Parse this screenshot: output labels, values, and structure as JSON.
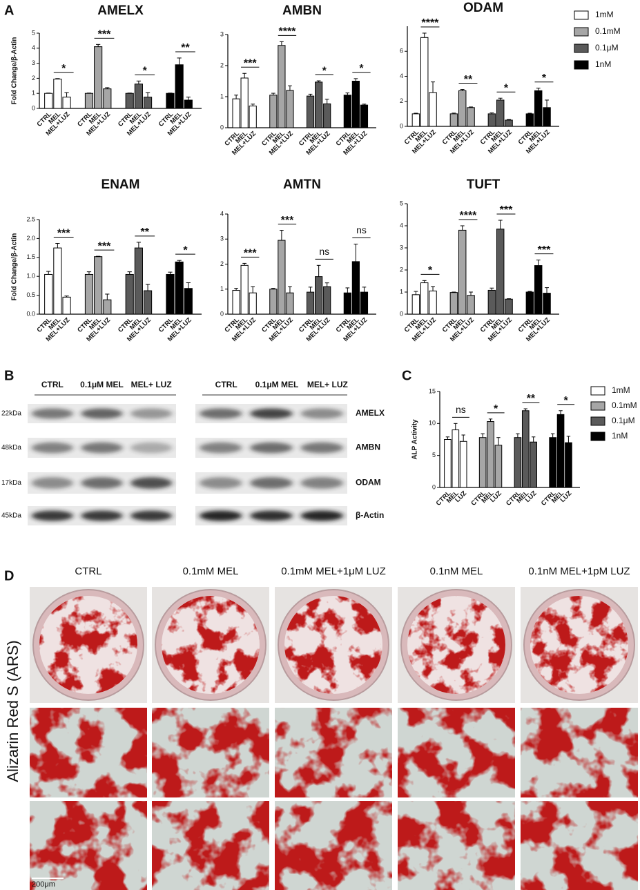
{
  "panel_labels": [
    "A",
    "B",
    "C",
    "D"
  ],
  "chart_data": [
    {
      "type": "bar",
      "title": "AMELX",
      "ylabel": "Fold Change/β-Actin",
      "categories": [
        "CTRL",
        "MEL",
        "MEL+LUZ"
      ],
      "ylim": [
        0,
        5
      ],
      "yticks": [
        0,
        1,
        2,
        3,
        4,
        5
      ],
      "series": [
        {
          "color": "#ffffff",
          "values": [
            1.0,
            1.95,
            0.75
          ],
          "errors": [
            0.02,
            0.03,
            0.3
          ],
          "significance": "*"
        },
        {
          "color": "#a6a6a6",
          "values": [
            1.0,
            4.1,
            1.3
          ],
          "errors": [
            0.02,
            0.15,
            0.08
          ],
          "significance": "***"
        },
        {
          "color": "#5a5a5a",
          "values": [
            1.0,
            1.62,
            0.75
          ],
          "errors": [
            0.02,
            0.2,
            0.3
          ],
          "significance": "*"
        },
        {
          "color": "#000000",
          "values": [
            1.0,
            2.9,
            0.55
          ],
          "errors": [
            0.02,
            0.45,
            0.2
          ],
          "significance": "**"
        }
      ]
    },
    {
      "type": "bar",
      "title": "AMBN",
      "categories": [
        "CTRL",
        "MEL",
        "MEL+LUZ"
      ],
      "ylim": [
        0,
        3
      ],
      "yticks": [
        0,
        1,
        2,
        3
      ],
      "series": [
        {
          "color": "#ffffff",
          "values": [
            0.93,
            1.6,
            0.7
          ],
          "errors": [
            0.12,
            0.15,
            0.06
          ],
          "significance": "***"
        },
        {
          "color": "#a6a6a6",
          "values": [
            1.05,
            2.65,
            1.2
          ],
          "errors": [
            0.06,
            0.12,
            0.15
          ],
          "significance": "****"
        },
        {
          "color": "#5a5a5a",
          "values": [
            1.02,
            1.47,
            0.77
          ],
          "errors": [
            0.06,
            0.04,
            0.15
          ],
          "significance": "*"
        },
        {
          "color": "#000000",
          "values": [
            1.05,
            1.5,
            0.73
          ],
          "errors": [
            0.07,
            0.08,
            0.03
          ],
          "significance": "*"
        }
      ]
    },
    {
      "type": "bar",
      "title": "ODAM",
      "categories": [
        "CTRL",
        "MEL",
        "MEL+LUZ"
      ],
      "legend": "right",
      "ylim": [
        0,
        8
      ],
      "yticks": [
        0,
        2,
        4,
        6
      ],
      "series": [
        {
          "name": "1mM",
          "color": "#ffffff",
          "values": [
            1.0,
            7.1,
            2.7
          ],
          "errors": [
            0.05,
            0.35,
            0.85
          ],
          "significance": "****"
        },
        {
          "name": "0.1mM",
          "color": "#a6a6a6",
          "values": [
            1.0,
            2.85,
            1.5
          ],
          "errors": [
            0.06,
            0.1,
            0.05
          ],
          "significance": "**"
        },
        {
          "name": "0.1μM",
          "color": "#5a5a5a",
          "values": [
            1.0,
            2.1,
            0.5
          ],
          "errors": [
            0.08,
            0.15,
            0.05
          ],
          "significance": "*"
        },
        {
          "name": "1nM",
          "color": "#000000",
          "values": [
            1.0,
            2.85,
            1.5
          ],
          "errors": [
            0.05,
            0.2,
            0.6
          ],
          "significance": "*"
        }
      ]
    },
    {
      "type": "bar",
      "title": "ENAM",
      "ylabel": "Fold Change/β-Actin",
      "categories": [
        "CTRL",
        "MEL",
        "MEL+LUZ"
      ],
      "ylim": [
        0,
        2.5
      ],
      "yticks": [
        {
          "value": 0,
          "label": "0.0"
        },
        0.5,
        {
          "value": 1,
          "label": "1.0"
        },
        1.5,
        {
          "value": 2,
          "label": "2.0"
        },
        2.5
      ],
      "series": [
        {
          "color": "#ffffff",
          "values": [
            1.05,
            1.75,
            0.45
          ],
          "errors": [
            0.08,
            0.12,
            0.03
          ],
          "significance": "***"
        },
        {
          "color": "#a6a6a6",
          "values": [
            1.05,
            1.52,
            0.38
          ],
          "errors": [
            0.07,
            0.01,
            0.15
          ],
          "significance": "***"
        },
        {
          "color": "#5a5a5a",
          "values": [
            1.05,
            1.75,
            0.62
          ],
          "errors": [
            0.07,
            0.15,
            0.17
          ],
          "significance": "**"
        },
        {
          "color": "#000000",
          "values": [
            1.05,
            1.38,
            0.68
          ],
          "errors": [
            0.06,
            0.04,
            0.15
          ],
          "significance": "*"
        }
      ]
    },
    {
      "type": "bar",
      "title": "AMTN",
      "categories": [
        "CTRL",
        "MEL",
        "MEL+LUZ"
      ],
      "ylim": [
        0,
        4
      ],
      "yticks": [
        0,
        1,
        2,
        3,
        4
      ],
      "series": [
        {
          "color": "#ffffff",
          "values": [
            0.95,
            1.95,
            0.85
          ],
          "errors": [
            0.08,
            0.08,
            0.25
          ],
          "significance": "***"
        },
        {
          "color": "#a6a6a6",
          "values": [
            1.0,
            2.95,
            0.85
          ],
          "errors": [
            0.03,
            0.4,
            0.25
          ],
          "significance": "***"
        },
        {
          "color": "#5a5a5a",
          "values": [
            0.88,
            1.5,
            1.1
          ],
          "errors": [
            0.2,
            0.45,
            0.15
          ],
          "significance": "ns"
        },
        {
          "color": "#000000",
          "values": [
            0.85,
            2.1,
            0.88
          ],
          "errors": [
            0.2,
            0.7,
            0.2
          ],
          "significance": "ns"
        }
      ]
    },
    {
      "type": "bar",
      "title": "TUFT",
      "categories": [
        "CTRL",
        "MEL",
        "MEL+LUZ"
      ],
      "ylim": [
        0,
        5
      ],
      "yticks": [
        0,
        1,
        2,
        3,
        4,
        5
      ],
      "series": [
        {
          "color": "#ffffff",
          "values": [
            0.88,
            1.42,
            1.05
          ],
          "errors": [
            0.15,
            0.1,
            0.2
          ],
          "significance": "*"
        },
        {
          "color": "#a6a6a6",
          "values": [
            0.98,
            3.8,
            0.85
          ],
          "errors": [
            0.02,
            0.2,
            0.15
          ],
          "significance": "****"
        },
        {
          "color": "#5a5a5a",
          "values": [
            1.08,
            3.85,
            0.68
          ],
          "errors": [
            0.1,
            0.4,
            0.02
          ],
          "significance": "***"
        },
        {
          "color": "#000000",
          "values": [
            1.0,
            2.2,
            0.95
          ],
          "errors": [
            0.03,
            0.25,
            0.25
          ],
          "significance": "***"
        }
      ]
    },
    {
      "type": "bar",
      "ylabel": "ALP Activity",
      "categories": [
        "CTRL",
        "MEL",
        "LUZ"
      ],
      "legend": "right",
      "ylim": [
        0,
        15
      ],
      "yticks": [
        0,
        5,
        10,
        15
      ],
      "series": [
        {
          "name": "1mM",
          "color": "#ffffff",
          "values": [
            7.5,
            9.0,
            7.2
          ],
          "errors": [
            0.4,
            1.0,
            1.0
          ],
          "significance": "ns"
        },
        {
          "name": "0.1mM",
          "color": "#a6a6a6",
          "values": [
            7.8,
            10.3,
            6.6
          ],
          "errors": [
            0.6,
            0.4,
            1.2
          ],
          "significance": "*"
        },
        {
          "name": "0.1μM",
          "color": "#5a5a5a",
          "values": [
            7.8,
            12.0,
            7.1
          ],
          "errors": [
            0.6,
            0.3,
            0.8
          ],
          "significance": "**"
        },
        {
          "name": "1nM",
          "color": "#000000",
          "values": [
            7.8,
            11.4,
            7.0
          ],
          "errors": [
            0.6,
            0.6,
            1.0
          ],
          "significance": "*"
        }
      ]
    }
  ],
  "western_blot": {
    "blots": [
      {
        "columns": [
          "CTRL",
          "0.1μM MEL",
          "MEL+ LUZ"
        ],
        "markers": [
          "22kDa",
          "48kDa",
          "17kDa",
          "45kDa"
        ]
      },
      {
        "columns": [
          "CTRL",
          "0.1μM MEL",
          "MEL+ LUZ"
        ],
        "proteins": [
          "AMELX",
          "AMBN",
          "ODAM",
          "β-Actin"
        ]
      }
    ]
  },
  "alizarin": {
    "columns": [
      "CTRL",
      "0.1mM MEL",
      "0.1mM MEL+1μM LUZ",
      "0.1nM MEL",
      "0.1nM MEL+1pM LUZ"
    ],
    "ylabel": "Alizarin Red S (ARS)",
    "scale_bar": "200μm"
  }
}
